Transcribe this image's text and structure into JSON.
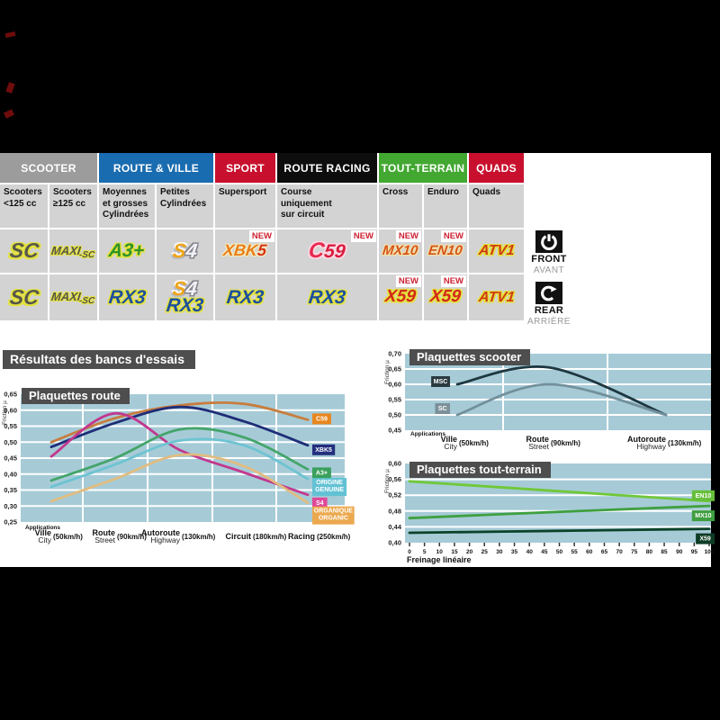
{
  "page": {
    "background": "#000000",
    "content_background": "#ffffff"
  },
  "section_title": "Résultats des bancs d'essais",
  "side_icons": {
    "front": "FRONT",
    "front_fr": "AVANT",
    "rear": "REAR",
    "rear_fr": "ARRIÈRE"
  },
  "table": {
    "new_label": "NEW",
    "categories": [
      {
        "label": "SCOOTER",
        "color": "#9c9c9c",
        "span": 2
      },
      {
        "label": "ROUTE & VILLE",
        "color": "#1a6cb0",
        "span": 2
      },
      {
        "label": "SPORT",
        "color": "#c8102e",
        "span": 1
      },
      {
        "label": "ROUTE RACING",
        "color": "#0d0d0d",
        "span": 1
      },
      {
        "label": "TOUT-TERRAIN",
        "color": "#43a832",
        "span": 2
      },
      {
        "label": "QUADS",
        "color": "#c8102e",
        "span": 1
      }
    ],
    "subheaders": [
      {
        "lines": [
          "Scooters",
          "<125 cc"
        ]
      },
      {
        "lines": [
          "Scooters",
          "≥125 cc"
        ]
      },
      {
        "lines": [
          "Moyennes",
          "et grosses",
          "Cylindrées"
        ]
      },
      {
        "lines": [
          "Petites",
          "Cylindrées"
        ]
      },
      {
        "lines": [
          "Supersport"
        ]
      },
      {
        "lines": [
          "Course",
          "uniquement",
          "sur circuit"
        ]
      },
      {
        "lines": [
          "Cross"
        ]
      },
      {
        "lines": [
          "Enduro"
        ]
      },
      {
        "lines": [
          "Quads"
        ]
      }
    ],
    "rows": {
      "front": [
        {
          "name": "sc",
          "lines": [
            [
              {
                "t": "SC",
                "c": "sc"
              }
            ]
          ]
        },
        {
          "name": "maxi-sc",
          "lines": [
            [
              {
                "t": "MAXI",
                "c": "maxi"
              },
              {
                "t": "-SC",
                "c": "maxisub"
              }
            ]
          ]
        },
        {
          "name": "a3plus",
          "lines": [
            [
              {
                "t": "A3+",
                "c": "a3"
              }
            ]
          ]
        },
        {
          "name": "s4",
          "lines": [
            [
              {
                "t": "S",
                "c": "s4s"
              },
              {
                "t": "4",
                "c": "s44"
              }
            ]
          ]
        },
        {
          "name": "xbk5",
          "new": true,
          "lines": [
            [
              {
                "t": "XBK",
                "c": "xbk"
              },
              {
                "t": "5",
                "c": "xbk5"
              }
            ]
          ]
        },
        {
          "name": "c59",
          "new": true,
          "lines": [
            [
              {
                "t": "C",
                "c": "c59c"
              },
              {
                "t": "59",
                "c": "c59n"
              }
            ]
          ]
        },
        {
          "name": "mx10",
          "new": true,
          "lines": [
            [
              {
                "t": "MX10",
                "c": "mx"
              }
            ]
          ]
        },
        {
          "name": "en10",
          "new": true,
          "lines": [
            [
              {
                "t": "EN10",
                "c": "mx"
              }
            ]
          ]
        },
        {
          "name": "atv1",
          "lines": [
            [
              {
                "t": "ATV1",
                "c": "atv"
              }
            ]
          ]
        }
      ],
      "rear": [
        {
          "name": "sc",
          "lines": [
            [
              {
                "t": "SC",
                "c": "sc"
              }
            ]
          ]
        },
        {
          "name": "maxi-sc",
          "lines": [
            [
              {
                "t": "MAXI",
                "c": "maxi"
              },
              {
                "t": "-SC",
                "c": "maxisub"
              }
            ]
          ]
        },
        {
          "name": "rx3",
          "lines": [
            [
              {
                "t": "RX3",
                "c": "rx"
              }
            ]
          ]
        },
        {
          "name": "s4-rx3",
          "lines": [
            [
              {
                "t": "S",
                "c": "s4s sm"
              },
              {
                "t": "4",
                "c": "s44 sm"
              }
            ],
            [
              {
                "t": "RX3",
                "c": "rx sm"
              }
            ]
          ]
        },
        {
          "name": "rx3",
          "lines": [
            [
              {
                "t": "RX3",
                "c": "rx"
              }
            ]
          ]
        },
        {
          "name": "rx3",
          "lines": [
            [
              {
                "t": "RX3",
                "c": "rx"
              }
            ]
          ]
        },
        {
          "name": "x59",
          "new": true,
          "lines": [
            [
              {
                "t": "X59",
                "c": "x59"
              }
            ]
          ]
        },
        {
          "name": "x59",
          "new": true,
          "lines": [
            [
              {
                "t": "X59",
                "c": "x59"
              }
            ]
          ]
        },
        {
          "name": "atv1",
          "lines": [
            [
              {
                "t": "ATV1",
                "c": "atv"
              }
            ]
          ]
        }
      ]
    }
  },
  "chart_data": [
    {
      "id": "route",
      "type": "line",
      "title": "Plaquettes route",
      "ylabel": "Friction µ",
      "xlabel": "Applications",
      "ylim": [
        0.25,
        0.65
      ],
      "yticks": [
        0.65,
        0.6,
        0.55,
        0.5,
        0.45,
        0.4,
        0.35,
        0.3,
        0.25
      ],
      "grid": true,
      "legend_position": "right-inside",
      "categories": [
        {
          "fr": "Ville",
          "en": "City",
          "speed": "(50km/h)"
        },
        {
          "fr": "Route",
          "en": "Street",
          "speed": "(90km/h)"
        },
        {
          "fr": "Autoroute",
          "en": "Highway",
          "speed": "(130km/h)"
        },
        {
          "fr": "Circuit",
          "en": "",
          "speed": "(180km/h)"
        },
        {
          "fr": "Racing",
          "en": "",
          "speed": "(250km/h)"
        }
      ],
      "series": [
        {
          "name": "C59",
          "legend": [
            "C59"
          ],
          "color": "#c87d3f",
          "legend_bg": "#e8861e",
          "values": [
            0.5,
            0.575,
            0.615,
            0.62,
            0.57
          ]
        },
        {
          "name": "XBK5",
          "legend": [
            "XBK5"
          ],
          "color": "#1e2d78",
          "legend_bg": "#232f7e",
          "values": [
            0.485,
            0.56,
            0.61,
            0.565,
            0.49
          ]
        },
        {
          "name": "S4",
          "legend": [
            "S4"
          ],
          "color": "#c2388e",
          "legend_bg": "#e0489a",
          "values": [
            0.455,
            0.59,
            0.475,
            0.405,
            0.335
          ]
        },
        {
          "name": "A3+",
          "legend": [
            "A3+"
          ],
          "color": "#44a56a",
          "legend_bg": "#3aa05c",
          "values": [
            0.38,
            0.45,
            0.54,
            0.515,
            0.415
          ]
        },
        {
          "name": "ORIGINE GENUINE",
          "legend": [
            "ORIGINE",
            "GENUINE"
          ],
          "color": "#6ec3d2",
          "legend_bg": "#62c2d4",
          "values": [
            0.36,
            0.43,
            0.505,
            0.49,
            0.385
          ]
        },
        {
          "name": "ORGANIQUE ORGANIC",
          "legend": [
            "ORGANIQUE",
            "ORGANIC"
          ],
          "color": "#e0bc80",
          "legend_bg": "#eca84e",
          "values": [
            0.315,
            0.385,
            0.46,
            0.425,
            0.31
          ]
        }
      ]
    },
    {
      "id": "scooter",
      "type": "line",
      "title": "Plaquettes scooter",
      "ylabel": "Friction µ",
      "xlabel": "Applications",
      "ylim": [
        0.45,
        0.7
      ],
      "yticks": [
        0.7,
        0.65,
        0.6,
        0.55,
        0.5,
        0.45
      ],
      "grid": true,
      "legend_position": "left-of-line",
      "categories": [
        {
          "fr": "Ville",
          "en": "City",
          "speed": "(50km/h)"
        },
        {
          "fr": "Route",
          "en": "Street",
          "speed": "(90km/h)"
        },
        {
          "fr": "Autoroute",
          "en": "Highway",
          "speed": "(130km/h)"
        }
      ],
      "series": [
        {
          "name": "MSC",
          "legend": [
            "MSC"
          ],
          "color": "#1e3740",
          "legend_bg": "#2a3a40",
          "values": [
            0.6,
            0.655,
            0.5
          ]
        },
        {
          "name": "SC",
          "legend": [
            "SC"
          ],
          "color": "#72909c",
          "legend_bg": "#7c909a",
          "values": [
            0.5,
            0.6,
            0.5
          ]
        }
      ]
    },
    {
      "id": "tt",
      "type": "line",
      "title": "Plaquettes tout-terrain",
      "ylabel": "Friction µ",
      "xlabel": "Freinage linéaire",
      "ylim": [
        0.4,
        0.6
      ],
      "yticks": [
        0.6,
        0.56,
        0.52,
        0.48,
        0.44,
        0.4
      ],
      "xlim": [
        0,
        100
      ],
      "xtick_step": 5,
      "grid": true,
      "legend_position": "right-inside",
      "series": [
        {
          "name": "EN10",
          "legend": [
            "EN10"
          ],
          "color": "#70c838",
          "legend_bg": "#66bf3a",
          "x": [
            0,
            50,
            100
          ],
          "values": [
            0.555,
            0.53,
            0.505
          ]
        },
        {
          "name": "MX10",
          "legend": [
            "MX10"
          ],
          "color": "#3fa03f",
          "legend_bg": "#3f9e3f",
          "x": [
            0,
            50,
            100
          ],
          "values": [
            0.462,
            0.478,
            0.493
          ]
        },
        {
          "name": "X59",
          "legend": [
            "X59"
          ],
          "color": "#0c4228",
          "legend_bg": "#0e3d26",
          "x": [
            0,
            50,
            100
          ],
          "values": [
            0.425,
            0.43,
            0.435
          ]
        }
      ]
    }
  ]
}
